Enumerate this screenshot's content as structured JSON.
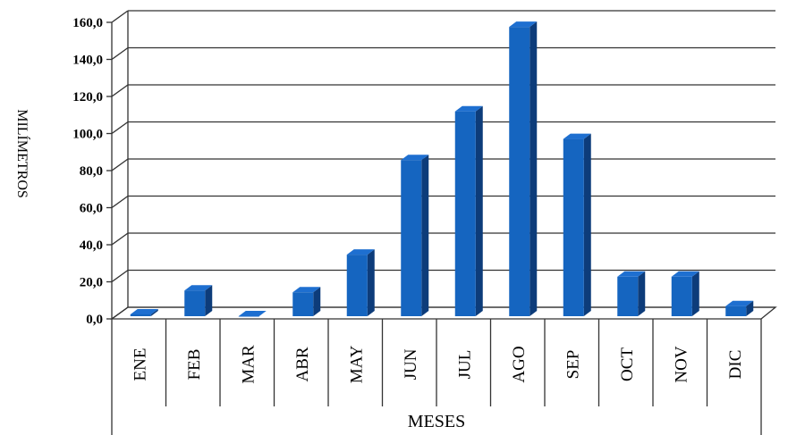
{
  "chart_data": {
    "type": "bar",
    "title": "",
    "xlabel": "MESES",
    "ylabel": "MILÍMETROS",
    "categories": [
      "ENE",
      "FEB",
      "MAR",
      "ABR",
      "MAY",
      "JUN",
      "JUL",
      "AGO",
      "SEP",
      "OCT",
      "NOV",
      "DIC"
    ],
    "values": [
      1.0,
      14.0,
      0.0,
      13.0,
      33.5,
      85.0,
      111.5,
      157.5,
      96.5,
      21.5,
      21.5,
      5.5
    ],
    "ylim": [
      0,
      160
    ],
    "yticks": [
      "0,0",
      "20,0",
      "40,0",
      "60,0",
      "80,0",
      "100,0",
      "120,0",
      "140,0",
      "160,0"
    ],
    "grid": true,
    "legend": "none",
    "bar_color": "#1565C0",
    "bar_side_color": "#0D3C7A",
    "bar_top_color": "#1E6FD0",
    "three_d": true
  }
}
